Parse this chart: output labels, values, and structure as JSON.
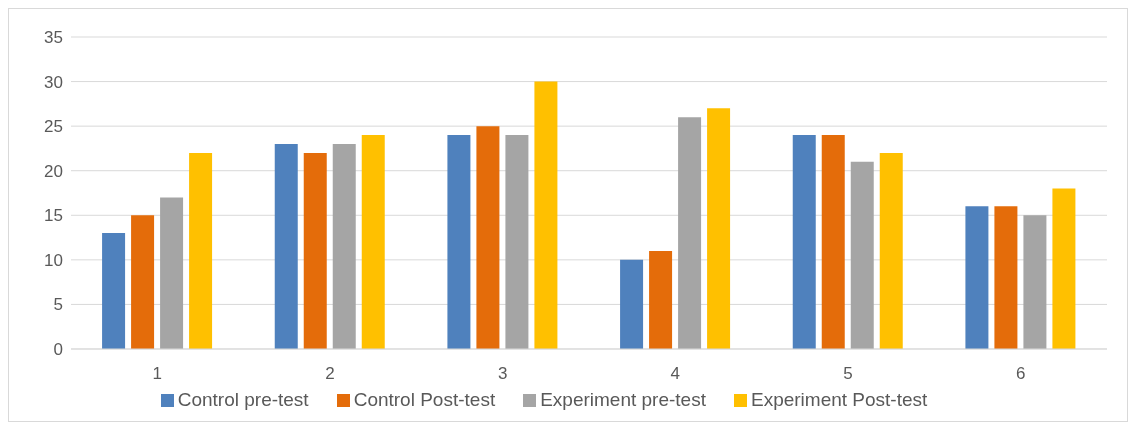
{
  "chart_data": {
    "type": "bar",
    "categories": [
      "1",
      "2",
      "3",
      "4",
      "5",
      "6"
    ],
    "series": [
      {
        "name": "Control pre-test",
        "color": "#4f81bd",
        "values": [
          13,
          23,
          24,
          10,
          24,
          16
        ]
      },
      {
        "name": "Control Post-test",
        "color": "#e46c0a",
        "values": [
          15,
          22,
          25,
          11,
          24,
          16
        ]
      },
      {
        "name": "Experiment pre-test",
        "color": "#a5a5a5",
        "values": [
          17,
          23,
          24,
          26,
          21,
          15
        ]
      },
      {
        "name": "Experiment Post-test",
        "color": "#ffc000",
        "values": [
          22,
          24,
          30,
          27,
          22,
          18
        ]
      }
    ],
    "ylim": [
      0,
      35
    ],
    "yticks": [
      0,
      5,
      10,
      15,
      20,
      25,
      30,
      35
    ],
    "grid": "y",
    "legend": "bottom"
  }
}
